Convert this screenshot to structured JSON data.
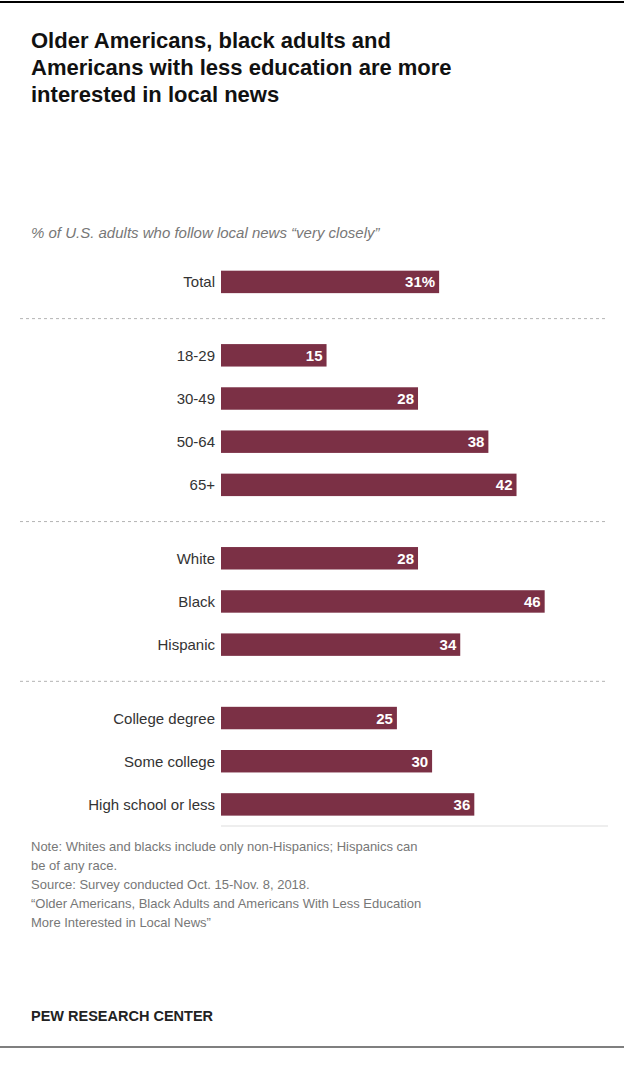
{
  "chart_data": {
    "type": "bar",
    "orientation": "horizontal",
    "title": "Older Americans, black adults and\nAmericans with less education are more\ninterested in local news",
    "subtitle": "% of U.S. adults who follow local news “very closely”",
    "categories": [
      "Total",
      "18-29",
      "30-49",
      "50-64",
      "65+",
      "White",
      "Black",
      "Hispanic",
      "College degree",
      "Some college",
      "High school or less"
    ],
    "values": [
      31,
      15,
      28,
      38,
      42,
      28,
      46,
      34,
      25,
      30,
      36
    ],
    "value_labels": [
      "31%",
      "15",
      "28",
      "38",
      "42",
      "28",
      "46",
      "34",
      "25",
      "30",
      "36"
    ],
    "color": "#7b3045",
    "xlim": [
      0,
      55
    ],
    "data_labels": true,
    "tick_labels": "y",
    "grid": false,
    "note": "Note: Whites and blacks include only non-Hispanics; Hispanics can\nbe of any race.\nSource: Survey conducted Oct. 15-Nov. 8, 2018.\n“Older Americans, Black Adults and Americans With Less Education\nMore Interested in Local News”",
    "footer": "PEW RESEARCH CENTER"
  }
}
